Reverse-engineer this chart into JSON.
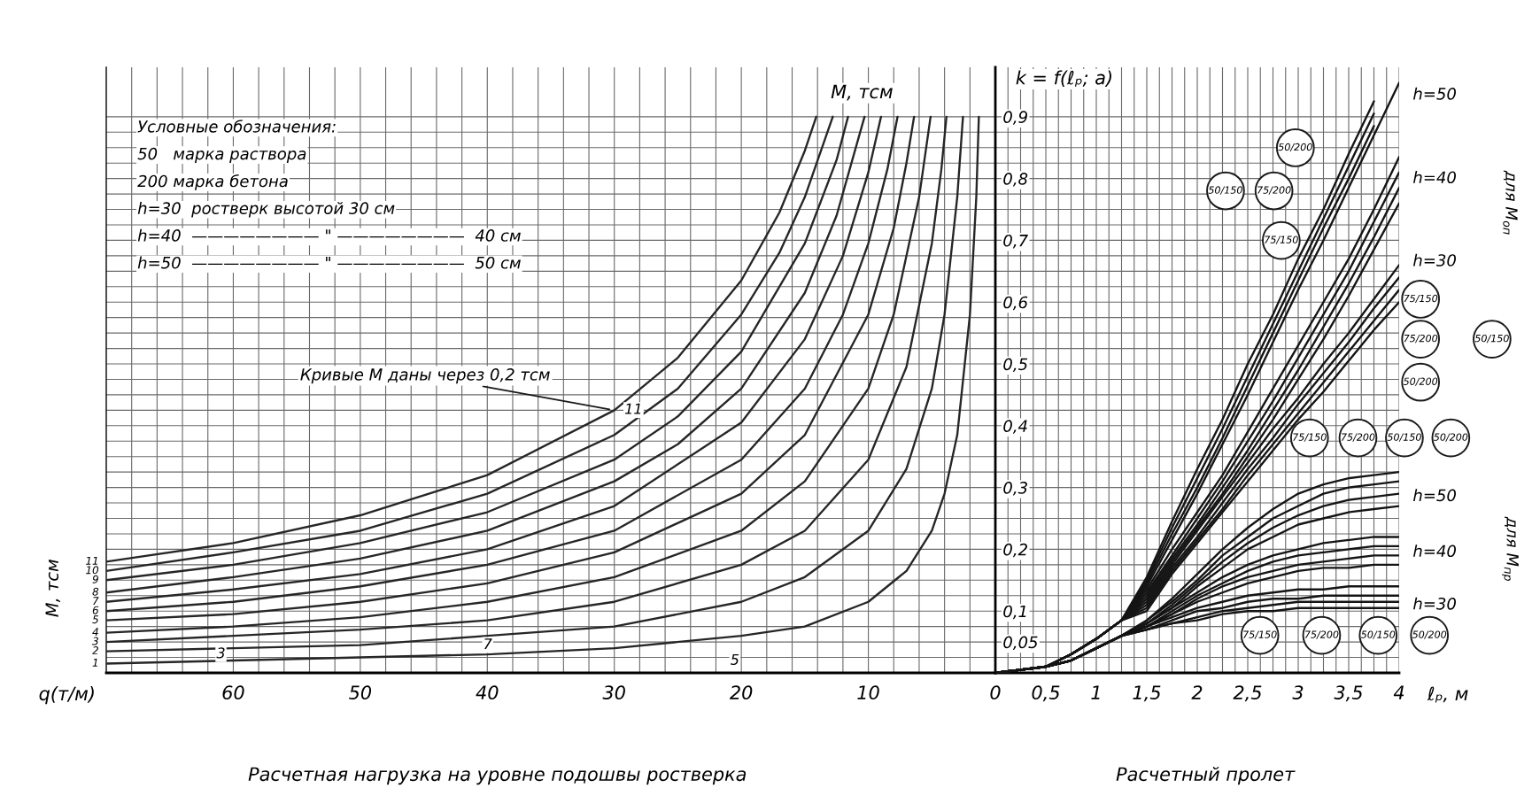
{
  "chart_data": [
    {
      "type": "line",
      "title": "M, тсм",
      "ylabel": "M, тсм",
      "xlabel": "q(т/м)",
      "subtitle": "Расчетная нагрузка на уровне подошвы ростверка",
      "xlim": [
        70,
        0
      ],
      "ylim": [
        0,
        0.98
      ],
      "tick_labels": "x",
      "grid": true,
      "xticks": [
        {
          "value": 2,
          "label": null
        },
        {
          "value": 4,
          "label": null
        },
        {
          "value": 6,
          "label": null
        },
        {
          "value": 8,
          "label": null
        },
        10,
        {
          "value": 12,
          "label": null
        },
        {
          "value": 14,
          "label": null
        },
        {
          "value": 16,
          "label": null
        },
        {
          "value": 18,
          "label": null
        },
        20,
        {
          "value": 22,
          "label": null
        },
        {
          "value": 24,
          "label": null
        },
        {
          "value": 26,
          "label": null
        },
        {
          "value": 28,
          "label": null
        },
        30,
        {
          "value": 32,
          "label": null
        },
        {
          "value": 34,
          "label": null
        },
        {
          "value": 36,
          "label": null
        },
        {
          "value": 38,
          "label": null
        },
        40,
        {
          "value": 42,
          "label": null
        },
        {
          "value": 44,
          "label": null
        },
        {
          "value": 46,
          "label": null
        },
        {
          "value": 48,
          "label": null
        },
        50,
        {
          "value": 52,
          "label": null
        },
        {
          "value": 54,
          "label": null
        },
        {
          "value": 56,
          "label": null
        },
        {
          "value": 58,
          "label": null
        },
        60,
        {
          "value": 62,
          "label": null
        },
        {
          "value": 64,
          "label": null
        },
        {
          "value": 66,
          "label": null
        },
        {
          "value": 68,
          "label": null
        }
      ],
      "yticks": [
        {
          "value": 0.025,
          "label": null
        },
        {
          "value": 0.05,
          "label": null
        },
        {
          "value": 0.075,
          "label": null
        },
        {
          "value": 0.1,
          "label": null
        },
        {
          "value": 0.125,
          "label": null
        },
        {
          "value": 0.15,
          "label": null
        },
        {
          "value": 0.175,
          "label": null
        },
        {
          "value": 0.2,
          "label": null
        },
        {
          "value": 0.225,
          "label": null
        },
        {
          "value": 0.25,
          "label": null
        },
        {
          "value": 0.275,
          "label": null
        },
        {
          "value": 0.3,
          "label": null
        },
        {
          "value": 0.325,
          "label": null
        },
        {
          "value": 0.35,
          "label": null
        },
        {
          "value": 0.375,
          "label": null
        },
        {
          "value": 0.4,
          "label": null
        },
        {
          "value": 0.425,
          "label": null
        },
        {
          "value": 0.45,
          "label": null
        },
        {
          "value": 0.475,
          "label": null
        },
        {
          "value": 0.5,
          "label": null
        },
        {
          "value": 0.525,
          "label": null
        },
        {
          "value": 0.55,
          "label": null
        },
        {
          "value": 0.575,
          "label": null
        },
        {
          "value": 0.6,
          "label": null
        },
        {
          "value": 0.625,
          "label": null
        },
        {
          "value": 0.65,
          "label": null
        },
        {
          "value": 0.675,
          "label": null
        },
        {
          "value": 0.7,
          "label": null
        },
        {
          "value": 0.725,
          "label": null
        },
        {
          "value": 0.75,
          "label": null
        },
        {
          "value": 0.775,
          "label": null
        },
        {
          "value": 0.8,
          "label": null
        },
        {
          "value": 0.825,
          "label": null
        },
        {
          "value": 0.85,
          "label": null
        },
        {
          "value": 0.875,
          "label": null
        },
        {
          "value": 0.9,
          "label": null
        }
      ],
      "series": [
        {
          "name": "11",
          "color": "#262626",
          "x": [
            70,
            60,
            50,
            40,
            30,
            25,
            20,
            17,
            15,
            14.1
          ],
          "values": [
            0.18,
            0.21,
            0.255,
            0.32,
            0.425,
            0.51,
            0.635,
            0.745,
            0.845,
            0.9
          ]
        },
        {
          "name": "10",
          "color": "#262626",
          "x": [
            70,
            60,
            50,
            40,
            30,
            25,
            20,
            17,
            15,
            12.8
          ],
          "values": [
            0.165,
            0.195,
            0.23,
            0.29,
            0.385,
            0.46,
            0.58,
            0.68,
            0.77,
            0.9
          ]
        },
        {
          "name": "9",
          "color": "#262626",
          "x": [
            70,
            60,
            50,
            40,
            30,
            25,
            20,
            15,
            12.5,
            11.6
          ],
          "values": [
            0.15,
            0.175,
            0.21,
            0.26,
            0.345,
            0.415,
            0.52,
            0.695,
            0.83,
            0.9
          ]
        },
        {
          "name": "8",
          "color": "#262626",
          "x": [
            70,
            60,
            50,
            40,
            30,
            25,
            20,
            15,
            12.5,
            10.3
          ],
          "values": [
            0.13,
            0.155,
            0.185,
            0.23,
            0.31,
            0.37,
            0.46,
            0.615,
            0.74,
            0.9
          ]
        },
        {
          "name": "7",
          "color": "#262626",
          "x": [
            70,
            60,
            50,
            40,
            30,
            20,
            15,
            12,
            10,
            9
          ],
          "values": [
            0.115,
            0.135,
            0.16,
            0.2,
            0.27,
            0.405,
            0.54,
            0.675,
            0.81,
            0.9
          ]
        },
        {
          "name": "6",
          "color": "#262626",
          "x": [
            70,
            60,
            50,
            40,
            30,
            20,
            15,
            12,
            10,
            8.5,
            7.7
          ],
          "values": [
            0.1,
            0.115,
            0.14,
            0.175,
            0.23,
            0.345,
            0.46,
            0.58,
            0.695,
            0.815,
            0.9
          ]
        },
        {
          "name": "5",
          "color": "#262626",
          "x": [
            70,
            60,
            50,
            40,
            30,
            20,
            15,
            10,
            8,
            7,
            6.4
          ],
          "values": [
            0.085,
            0.095,
            0.115,
            0.145,
            0.195,
            0.29,
            0.385,
            0.58,
            0.72,
            0.825,
            0.9
          ]
        },
        {
          "name": "4",
          "color": "#262626",
          "x": [
            70,
            60,
            50,
            40,
            30,
            20,
            15,
            10,
            8,
            6,
            5.1
          ],
          "values": [
            0.065,
            0.075,
            0.09,
            0.115,
            0.155,
            0.23,
            0.31,
            0.46,
            0.58,
            0.77,
            0.9
          ]
        },
        {
          "name": "3",
          "color": "#262626",
          "x": [
            70,
            60,
            50,
            40,
            30,
            20,
            15,
            10,
            7,
            5,
            4.25,
            3.85
          ],
          "values": [
            0.05,
            0.06,
            0.07,
            0.085,
            0.115,
            0.175,
            0.23,
            0.345,
            0.495,
            0.695,
            0.815,
            0.9
          ]
        },
        {
          "name": "2",
          "color": "#262626",
          "x": [
            70,
            60,
            50,
            40,
            30,
            20,
            15,
            10,
            7,
            5,
            4,
            3,
            2.55
          ],
          "values": [
            0.035,
            0.04,
            0.045,
            0.06,
            0.075,
            0.115,
            0.155,
            0.23,
            0.33,
            0.46,
            0.58,
            0.77,
            0.9
          ]
        },
        {
          "name": "1",
          "color": "#262626",
          "x": [
            70,
            60,
            50,
            40,
            30,
            20,
            15,
            10,
            7,
            5,
            4,
            3,
            2,
            1.5,
            1.3
          ],
          "values": [
            0.015,
            0.02,
            0.025,
            0.03,
            0.04,
            0.06,
            0.075,
            0.115,
            0.165,
            0.23,
            0.29,
            0.385,
            0.58,
            0.77,
            0.9
          ]
        }
      ],
      "annotations": [
        "Условные обозначения:",
        "50   марка раствора",
        "200 марка бетона",
        "h=30  ростверк высотой 30 см",
        "h=40  ———————— \" ————————  40 см",
        "h=50  ———————— \" ————————  50 см",
        {
          "text": "Кривые M даны через 0,2 тсм",
          "x": 30,
          "y": 0.425
        },
        "11",
        "3",
        "7",
        "5"
      ]
    },
    {
      "type": "line",
      "title": "k = f(ℓₚ; a)",
      "xlabel": "ℓₚ, м",
      "subtitle": "Расчетный пролет",
      "xlim": [
        0,
        4
      ],
      "ylim": [
        0,
        0.98
      ],
      "grid": true,
      "xticks": [
        0,
        {
          "value": 0.125,
          "label": null
        },
        {
          "value": 0.25,
          "label": null
        },
        {
          "value": 0.375,
          "label": null
        },
        {
          "value": 0.5,
          "label": "0,5"
        },
        {
          "value": 0.625,
          "label": null
        },
        {
          "value": 0.75,
          "label": null
        },
        {
          "value": 0.875,
          "label": null
        },
        1,
        {
          "value": 1.125,
          "label": null
        },
        {
          "value": 1.25,
          "label": null
        },
        {
          "value": 1.375,
          "label": null
        },
        {
          "value": 1.5,
          "label": "1,5"
        },
        {
          "value": 1.625,
          "label": null
        },
        {
          "value": 1.75,
          "label": null
        },
        {
          "value": 1.875,
          "label": null
        },
        2,
        {
          "value": 2.125,
          "label": null
        },
        {
          "value": 2.25,
          "label": null
        },
        {
          "value": 2.375,
          "label": null
        },
        {
          "value": 2.5,
          "label": "2,5"
        },
        {
          "value": 2.625,
          "label": null
        },
        {
          "value": 2.75,
          "label": null
        },
        {
          "value": 2.875,
          "label": null
        },
        3,
        {
          "value": 3.125,
          "label": null
        },
        {
          "value": 3.25,
          "label": null
        },
        {
          "value": 3.375,
          "label": null
        },
        {
          "value": 3.5,
          "label": "3,5"
        },
        {
          "value": 3.625,
          "label": null
        },
        {
          "value": 3.75,
          "label": null
        },
        {
          "value": 3.875,
          "label": null
        },
        4
      ],
      "yticks": [
        {
          "value": 0.025,
          "label": null
        },
        {
          "value": 0.05,
          "label": "0,05"
        },
        {
          "value": 0.075,
          "label": null
        },
        {
          "value": 0.1,
          "label": "0,1"
        },
        {
          "value": 0.125,
          "label": null
        },
        {
          "value": 0.15,
          "label": null
        },
        {
          "value": 0.175,
          "label": null
        },
        {
          "value": 0.2,
          "label": "0,2"
        },
        {
          "value": 0.225,
          "label": null
        },
        {
          "value": 0.25,
          "label": null
        },
        {
          "value": 0.275,
          "label": null
        },
        {
          "value": 0.3,
          "label": "0,3"
        },
        {
          "value": 0.325,
          "label": null
        },
        {
          "value": 0.35,
          "label": null
        },
        {
          "value": 0.375,
          "label": null
        },
        {
          "value": 0.4,
          "label": "0,4"
        },
        {
          "value": 0.425,
          "label": null
        },
        {
          "value": 0.45,
          "label": null
        },
        {
          "value": 0.475,
          "label": null
        },
        {
          "value": 0.5,
          "label": "0,5"
        },
        {
          "value": 0.525,
          "label": null
        },
        {
          "value": 0.55,
          "label": null
        },
        {
          "value": 0.575,
          "label": null
        },
        {
          "value": 0.6,
          "label": "0,6"
        },
        {
          "value": 0.625,
          "label": null
        },
        {
          "value": 0.65,
          "label": null
        },
        {
          "value": 0.675,
          "label": null
        },
        {
          "value": 0.7,
          "label": "0,7"
        },
        {
          "value": 0.725,
          "label": null
        },
        {
          "value": 0.75,
          "label": null
        },
        {
          "value": 0.775,
          "label": null
        },
        {
          "value": 0.8,
          "label": "0,8"
        },
        {
          "value": 0.825,
          "label": null
        },
        {
          "value": 0.85,
          "label": null
        },
        {
          "value": 0.875,
          "label": null
        },
        {
          "value": 0.9,
          "label": "0,9"
        }
      ],
      "x": [
        0,
        0.25,
        0.5,
        0.75,
        1,
        1.25,
        1.5,
        1.75,
        2,
        2.25,
        2.5,
        2.75,
        3,
        3.25,
        3.5,
        3.75,
        4
      ],
      "series": [
        {
          "color": "#141414",
          "values": [
            0,
            0.005,
            0.01,
            0.03,
            0.055,
            0.085,
            0.155,
            0.245,
            0.33,
            0.41,
            0.5,
            0.58,
            0.67,
            0.75,
            0.84,
            0.925,
            null
          ]
        },
        {
          "color": "#141414",
          "values": [
            0,
            0.005,
            0.01,
            0.03,
            0.055,
            0.085,
            0.15,
            0.235,
            0.315,
            0.395,
            0.48,
            0.565,
            0.65,
            0.735,
            0.82,
            0.905,
            null
          ]
        },
        {
          "color": "#141414",
          "values": [
            0,
            0.005,
            0.01,
            0.03,
            0.055,
            0.085,
            0.145,
            0.225,
            0.3,
            0.38,
            0.465,
            0.55,
            0.635,
            0.72,
            0.8,
            0.885,
            null
          ]
        },
        {
          "color": "#141414",
          "values": [
            0,
            0.005,
            0.01,
            0.03,
            0.055,
            0.085,
            0.14,
            0.215,
            0.29,
            0.37,
            0.45,
            0.535,
            0.62,
            0.7,
            0.785,
            0.87,
            0.955
          ]
        },
        {
          "color": "#141414",
          "values": [
            0,
            0.005,
            0.01,
            0.03,
            0.055,
            0.085,
            0.135,
            0.2,
            0.26,
            0.32,
            0.39,
            0.46,
            0.53,
            0.6,
            0.67,
            0.75,
            0.835
          ]
        },
        {
          "color": "#141414",
          "values": [
            0,
            0.005,
            0.01,
            0.03,
            0.055,
            0.085,
            0.13,
            0.19,
            0.25,
            0.31,
            0.375,
            0.44,
            0.51,
            0.58,
            0.65,
            0.73,
            0.81
          ]
        },
        {
          "color": "#141414",
          "values": [
            0,
            0.005,
            0.01,
            0.03,
            0.055,
            0.085,
            0.125,
            0.185,
            0.24,
            0.3,
            0.36,
            0.425,
            0.49,
            0.56,
            0.63,
            0.705,
            0.785
          ]
        },
        {
          "color": "#141414",
          "values": [
            0,
            0.005,
            0.01,
            0.03,
            0.055,
            0.085,
            0.12,
            0.18,
            0.235,
            0.29,
            0.35,
            0.41,
            0.475,
            0.54,
            0.61,
            0.685,
            0.76
          ]
        },
        {
          "color": "#141414",
          "values": [
            0,
            0.005,
            0.01,
            0.03,
            0.055,
            0.085,
            0.115,
            0.175,
            0.23,
            0.285,
            0.34,
            0.395,
            0.445,
            0.5,
            0.55,
            0.605,
            0.66
          ]
        },
        {
          "color": "#141414",
          "values": [
            0,
            0.005,
            0.01,
            0.03,
            0.055,
            0.085,
            0.11,
            0.17,
            0.22,
            0.275,
            0.33,
            0.38,
            0.435,
            0.485,
            0.535,
            0.59,
            0.64
          ]
        },
        {
          "color": "#141414",
          "values": [
            0,
            0.005,
            0.01,
            0.03,
            0.055,
            0.085,
            0.105,
            0.165,
            0.215,
            0.265,
            0.32,
            0.37,
            0.42,
            0.47,
            0.52,
            0.57,
            0.62
          ]
        },
        {
          "color": "#141414",
          "values": [
            0,
            0.005,
            0.01,
            0.03,
            0.055,
            0.085,
            0.1,
            0.16,
            0.21,
            0.26,
            0.31,
            0.36,
            0.41,
            0.455,
            0.505,
            0.555,
            0.6
          ]
        },
        {
          "color": "#141414",
          "values": [
            0,
            0.005,
            0.01,
            0.02,
            0.04,
            0.06,
            0.085,
            0.12,
            0.16,
            0.2,
            0.235,
            0.265,
            0.29,
            0.305,
            0.315,
            0.32,
            0.325
          ]
        },
        {
          "color": "#141414",
          "values": [
            0,
            0.005,
            0.01,
            0.02,
            0.04,
            0.06,
            0.085,
            0.115,
            0.15,
            0.19,
            0.22,
            0.25,
            0.27,
            0.29,
            0.3,
            0.305,
            0.31
          ]
        },
        {
          "color": "#141414",
          "values": [
            0,
            0.005,
            0.01,
            0.02,
            0.04,
            0.06,
            0.08,
            0.11,
            0.145,
            0.18,
            0.21,
            0.235,
            0.255,
            0.27,
            0.28,
            0.285,
            0.29
          ]
        },
        {
          "color": "#141414",
          "values": [
            0,
            0.005,
            0.01,
            0.02,
            0.04,
            0.06,
            0.08,
            0.105,
            0.14,
            0.17,
            0.2,
            0.22,
            0.24,
            0.25,
            0.26,
            0.265,
            0.27
          ]
        },
        {
          "color": "#141414",
          "values": [
            0,
            0.005,
            0.01,
            0.02,
            0.04,
            0.06,
            0.08,
            0.105,
            0.13,
            0.155,
            0.175,
            0.19,
            0.2,
            0.21,
            0.215,
            0.22,
            0.22
          ]
        },
        {
          "color": "#141414",
          "values": [
            0,
            0.005,
            0.01,
            0.02,
            0.04,
            0.06,
            0.075,
            0.1,
            0.125,
            0.145,
            0.165,
            0.18,
            0.19,
            0.195,
            0.2,
            0.205,
            0.205
          ]
        },
        {
          "color": "#141414",
          "values": [
            0,
            0.005,
            0.01,
            0.02,
            0.04,
            0.06,
            0.075,
            0.095,
            0.12,
            0.14,
            0.155,
            0.165,
            0.175,
            0.18,
            0.185,
            0.19,
            0.19
          ]
        },
        {
          "color": "#141414",
          "values": [
            0,
            0.005,
            0.01,
            0.02,
            0.04,
            0.06,
            0.075,
            0.095,
            0.115,
            0.13,
            0.145,
            0.155,
            0.165,
            0.17,
            0.17,
            0.175,
            0.175
          ]
        },
        {
          "color": "#141414",
          "values": [
            0,
            0.005,
            0.01,
            0.02,
            0.04,
            0.06,
            0.075,
            0.09,
            0.105,
            0.115,
            0.125,
            0.13,
            0.135,
            0.135,
            0.14,
            0.14,
            0.14
          ]
        },
        {
          "color": "#141414",
          "values": [
            0,
            0.005,
            0.01,
            0.02,
            0.04,
            0.06,
            0.07,
            0.085,
            0.1,
            0.105,
            0.115,
            0.12,
            0.12,
            0.125,
            0.125,
            0.125,
            0.125
          ]
        },
        {
          "color": "#141414",
          "values": [
            0,
            0.005,
            0.01,
            0.02,
            0.04,
            0.06,
            0.07,
            0.08,
            0.09,
            0.1,
            0.105,
            0.11,
            0.115,
            0.115,
            0.115,
            0.115,
            0.115
          ]
        },
        {
          "color": "#141414",
          "values": [
            0,
            0.005,
            0.01,
            0.02,
            0.04,
            0.06,
            0.07,
            0.08,
            0.085,
            0.095,
            0.1,
            0.1,
            0.105,
            0.105,
            0.105,
            0.105,
            0.105
          ]
        }
      ],
      "annotations": [
        "50/200",
        "50/150",
        "75/200",
        "75/150",
        "h=50",
        "h=40",
        "h=30",
        "для M$_{оп}$",
        "75/150",
        "75/200",
        "50/150",
        "50/200",
        "75/150",
        "75/200",
        "50/150",
        "50/200",
        "h=50",
        "h=40",
        "h=30",
        "для M$_{пр}$",
        "75/150",
        "75/200",
        "50/150",
        "50/200"
      ]
    }
  ]
}
